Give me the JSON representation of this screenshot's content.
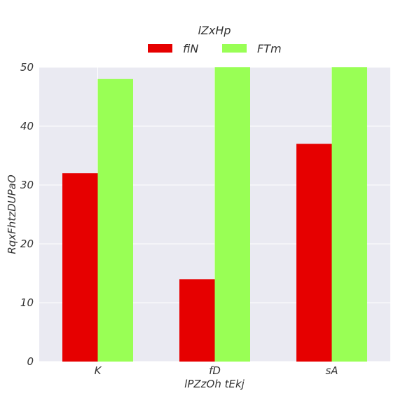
{
  "chart_data": {
    "type": "bar",
    "categories": [
      "K",
      "fD",
      "sA"
    ],
    "series": [
      {
        "name": "fiN",
        "values": [
          32,
          14,
          37
        ],
        "color": "#e60000"
      },
      {
        "name": "FTm",
        "values": [
          48,
          50,
          50
        ],
        "color": "#99ff55"
      }
    ],
    "legend_title": "lZxHp",
    "legend_position": "top-center",
    "xlabel": "lPZzOh tEkj",
    "ylabel": "RqxFhtzDUPaO",
    "ylim": [
      0,
      50
    ],
    "yticks": [
      0,
      10,
      20,
      30,
      40,
      50
    ],
    "grid": true,
    "background": "#eaeaf2"
  }
}
